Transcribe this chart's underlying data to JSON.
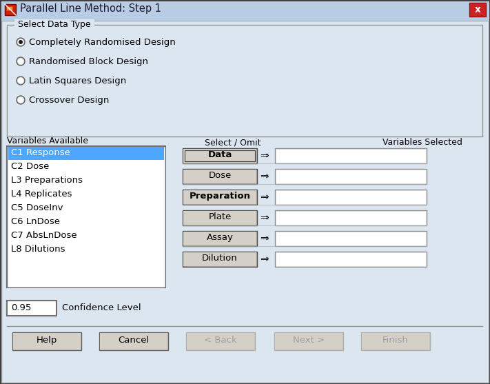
{
  "title": "Parallel Line Method: Step 1",
  "title_bar_color": "#b8cce4",
  "title_bar_gradient_top": "#c8daf0",
  "title_bar_gradient_bot": "#a0b8d8",
  "bg_color": "#d4d0c8",
  "close_btn_color": "#c0392b",
  "group_box_label": "Select Data Type",
  "radio_options": [
    "Completely Randomised Design",
    "Randomised Block Design",
    "Latin Squares Design",
    "Crossover Design"
  ],
  "radio_selected": 0,
  "variables_label": "Variables Available",
  "variables": [
    "C1 Response",
    "C2 Dose",
    "L3 Preparations",
    "L4 Replicates",
    "C5 DoseInv",
    "C6 LnDose",
    "C7 AbsLnDose",
    "L8 Dilutions"
  ],
  "selected_variable": "C1 Response",
  "selected_bg": "#4da6ff",
  "select_omit_label": "Select / Omit",
  "variables_selected_label": "Variables Selected",
  "buttons_select": [
    "Data",
    "Dose",
    "Preparation",
    "Plate",
    "Assay",
    "Dilution"
  ],
  "buttons_bold": [
    0,
    2
  ],
  "confidence_label": "Confidence Level",
  "confidence_value": "0.95",
  "bottom_buttons": [
    "Help",
    "Cancel",
    "< Back",
    "Next >",
    "Finish"
  ],
  "bottom_buttons_enabled": [
    true,
    true,
    false,
    false,
    false
  ],
  "panel_bg": "#dce6f0",
  "list_bg": "#ffffff",
  "field_bg": "#ffffff",
  "btn_bg": "#d4d0c8",
  "separator_color": "#808080",
  "border_color": "#808080",
  "text_color": "#000000",
  "disabled_color": "#a0a0a0"
}
